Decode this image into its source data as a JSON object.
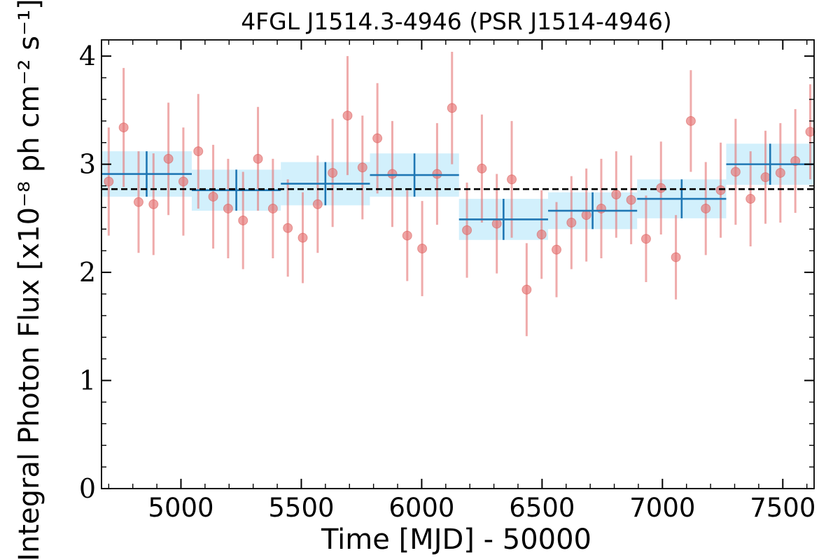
{
  "chart_data": {
    "type": "scatter",
    "title": "4FGL J1514.3-4946 (PSR J1514-4946)",
    "xlabel": "Time [MJD] - 50000",
    "ylabel": "Integral Photon Flux [x10⁻⁸ ph cm⁻² s⁻¹]",
    "xlim": [
      4670,
      7630
    ],
    "ylim": [
      0,
      4.15
    ],
    "x_ticks": [
      5000,
      5500,
      6000,
      6500,
      7000,
      7500
    ],
    "y_ticks": [
      0,
      1,
      2,
      3,
      4
    ],
    "x_tick_labels": [
      "5000",
      "5500",
      "6000",
      "6500",
      "7000",
      "7500"
    ],
    "y_tick_labels": [
      "0",
      "1",
      "2",
      "3",
      "4"
    ],
    "mean_flux": 2.77,
    "colors": {
      "points": "#e57373",
      "bins_line": "#1f77b4",
      "bins_fill": "#cdeefc",
      "mean_line": "#000000"
    },
    "series": [
      {
        "kind": "short-interval points with error bars",
        "x": [
          4700,
          4762,
          4824,
          4886,
          4948,
          5010,
          5072,
          5134,
          5196,
          5258,
          5320,
          5382,
          5444,
          5506,
          5568,
          5630,
          5692,
          5754,
          5816,
          5878,
          5940,
          6002,
          6064,
          6126,
          6188,
          6250,
          6312,
          6374,
          6436,
          6498,
          6560,
          6622,
          6684,
          6746,
          6808,
          6870,
          6932,
          6994,
          7056,
          7118,
          7180,
          7242,
          7304,
          7366,
          7428,
          7490,
          7552,
          7614
        ],
        "y": [
          2.84,
          3.34,
          2.65,
          2.63,
          3.05,
          2.84,
          3.12,
          2.7,
          2.59,
          2.48,
          3.05,
          2.59,
          2.41,
          2.32,
          2.63,
          2.92,
          3.45,
          2.97,
          3.24,
          2.91,
          2.34,
          2.22,
          2.91,
          3.52,
          2.39,
          2.96,
          2.45,
          2.86,
          1.84,
          2.35,
          2.21,
          2.46,
          2.53,
          2.59,
          2.72,
          2.67,
          2.31,
          2.78,
          2.14,
          3.4,
          2.59,
          2.76,
          2.93,
          2.68,
          2.88,
          2.92,
          3.03,
          3.3
        ],
        "y_err": [
          0.5,
          0.55,
          0.47,
          0.47,
          0.52,
          0.5,
          0.53,
          0.48,
          0.46,
          0.45,
          0.48,
          0.46,
          0.45,
          0.42,
          0.45,
          0.5,
          0.55,
          0.48,
          0.51,
          0.49,
          0.42,
          0.44,
          0.47,
          0.52,
          0.44,
          0.5,
          0.46,
          0.54,
          0.43,
          0.41,
          0.44,
          0.43,
          0.43,
          0.46,
          0.4,
          0.41,
          0.4,
          0.43,
          0.39,
          0.47,
          0.43,
          0.44,
          0.49,
          0.44,
          0.43,
          0.46,
          0.48,
          0.44
        ]
      },
      {
        "kind": "long-interval binned fluxes",
        "x_start": [
          4670,
          5045,
          5415,
          5785,
          6155,
          6525,
          6895,
          7265
        ],
        "x_end": [
          5045,
          5415,
          5785,
          6155,
          6525,
          6895,
          7265,
          7630
        ],
        "y": [
          2.91,
          2.76,
          2.82,
          2.9,
          2.49,
          2.57,
          2.68,
          3.0
        ],
        "y_err": [
          0.21,
          0.19,
          0.2,
          0.2,
          0.19,
          0.17,
          0.18,
          0.19
        ]
      }
    ]
  }
}
